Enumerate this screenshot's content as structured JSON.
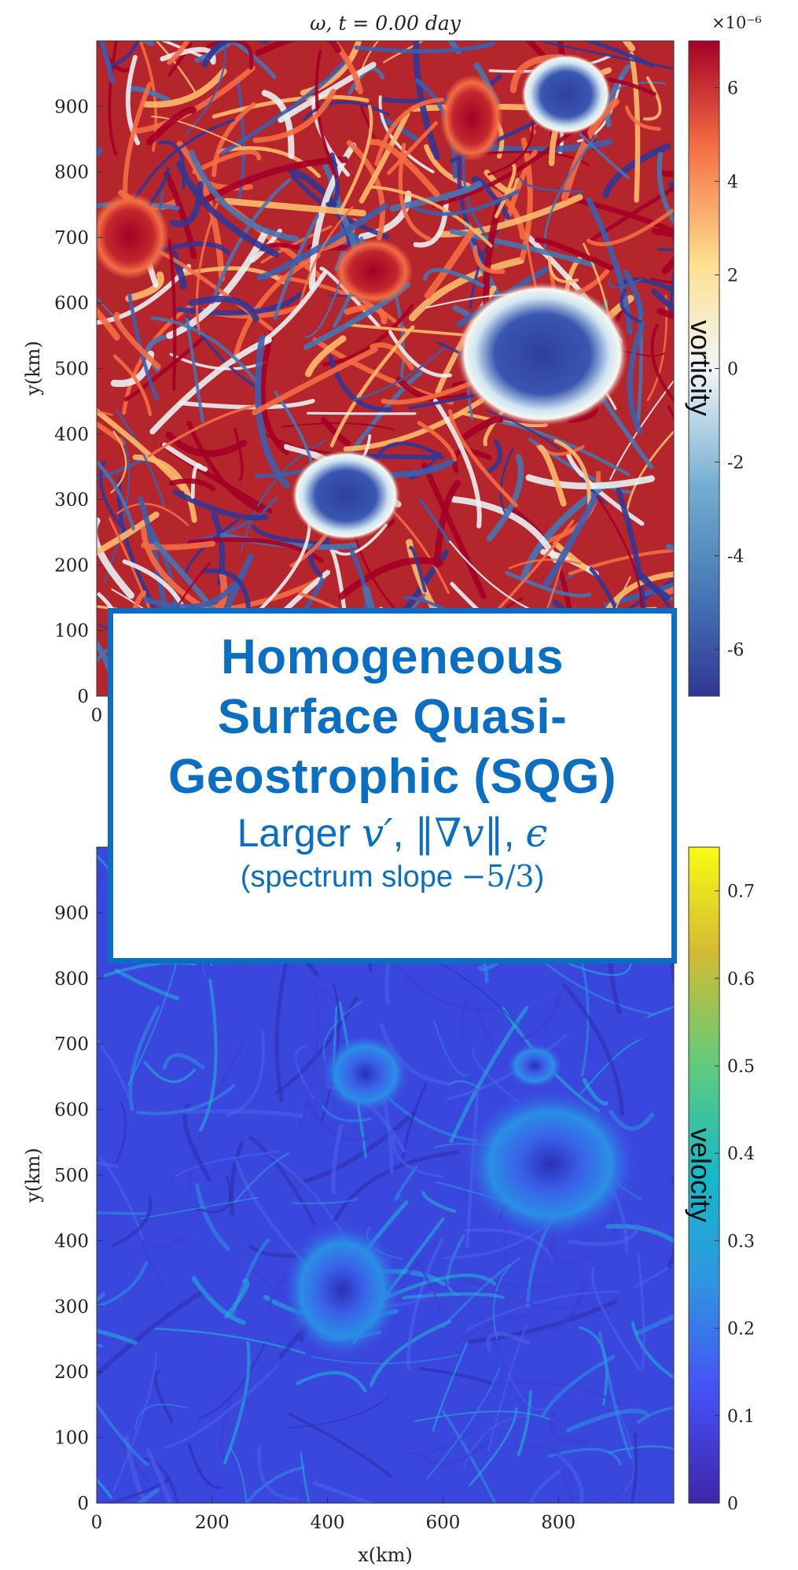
{
  "chart_data": [
    {
      "type": "heatmap",
      "title": "ω,  t = 0.00 day",
      "xlabel": "",
      "ylabel": "y(km)",
      "xlim": [
        0,
        1000
      ],
      "ylim": [
        0,
        1000
      ],
      "y_ticks": [
        0,
        100,
        200,
        300,
        400,
        500,
        600,
        700,
        800,
        900
      ],
      "x_ticks_visible": [
        0
      ],
      "colorbar": {
        "label": "vorticity",
        "multiplier": "×10⁻⁶",
        "range": [
          -7,
          7
        ],
        "ticks": [
          -6,
          -4,
          -2,
          0,
          2,
          4,
          6
        ],
        "colormap": [
          "#313695",
          "#4575b4",
          "#74add1",
          "#e0f3f8",
          "#fee090",
          "#f46d43",
          "#a50026"
        ]
      }
    },
    {
      "type": "heatmap",
      "title": "",
      "xlabel": "x(km)",
      "ylabel": "y(km)",
      "xlim": [
        0,
        1000
      ],
      "ylim": [
        0,
        1000
      ],
      "x_ticks": [
        0,
        200,
        400,
        600,
        800
      ],
      "y_ticks": [
        0,
        100,
        200,
        300,
        400,
        500,
        600,
        700,
        800,
        900
      ],
      "colorbar": {
        "label": "velocity",
        "range": [
          0,
          0.75
        ],
        "ticks": [
          0,
          0.1,
          0.2,
          0.3,
          0.4,
          0.5,
          0.6,
          0.7
        ],
        "colormap": [
          "#3e26a8",
          "#4650f7",
          "#2f96e0",
          "#15b9c9",
          "#62cb7a",
          "#d3bb32",
          "#f9fb15"
        ]
      }
    }
  ],
  "overlay": {
    "title_line1": "Homogeneous",
    "title_line2": "Surface Quasi-",
    "title_line3": "Geostrophic (SQG)",
    "subtitle_word": "Larger",
    "subtitle_math1": "v′",
    "subtitle_math2": "‖∇v‖",
    "subtitle_math3": "ϵ",
    "note_prefix": "(spectrum slope ",
    "note_math": "−5/3",
    "note_suffix": ")"
  },
  "colors": {
    "overlay_blue": "#0a6fc2",
    "vortex_red": "#a50026",
    "vortex_blue": "#313695",
    "velocity_low": "#3e2fd8",
    "velocity_high": "#19b5d6"
  }
}
